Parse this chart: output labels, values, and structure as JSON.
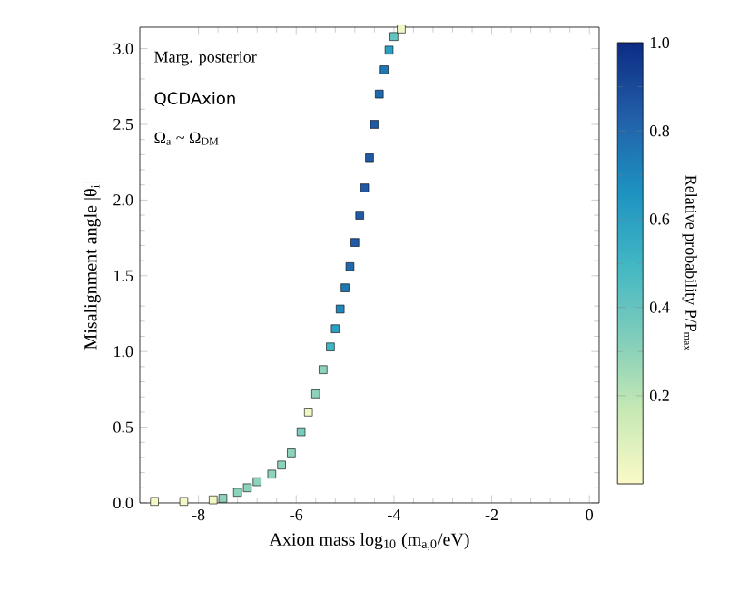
{
  "chart_data": {
    "type": "scatter",
    "xlabel": "Axion mass log$_{10}$ (m$_{a,0}$/eV)",
    "ylabel": "Misalignment angle |θ$_{i}$|",
    "clabel": "Relative probability P/P$_{max}$",
    "annotations": [
      "Marg. posterior",
      "QCDAxion",
      "Ω$_{a}$ ~ Ω$_{DM}$"
    ],
    "xlim": [
      -9.2,
      0.2
    ],
    "ylim": [
      0,
      3.1416
    ],
    "xticks": [
      -8,
      -6,
      -4,
      -2,
      0
    ],
    "yticks": [
      {
        "value": 0,
        "label": "0.0"
      },
      {
        "value": 0.5,
        "label": "0.5"
      },
      {
        "value": 1,
        "label": "1.0"
      },
      {
        "value": 1.5,
        "label": "1.5"
      },
      {
        "value": 2,
        "label": "2.0"
      },
      {
        "value": 2.5,
        "label": "2.5"
      },
      {
        "value": 3,
        "label": "3.0"
      }
    ],
    "clim": [
      0,
      1
    ],
    "cticks": [
      0.2,
      0.4,
      0.6,
      0.8,
      {
        "value": 1,
        "label": "1.0"
      }
    ],
    "marker": "square",
    "x": [
      -8.9,
      -8.3,
      -7.7,
      -7.5,
      -7.2,
      -7.0,
      -6.8,
      -6.5,
      -6.3,
      -6.1,
      -5.9,
      -5.75,
      -5.6,
      -5.45,
      -5.3,
      -5.2,
      -5.1,
      -5.0,
      -4.9,
      -4.8,
      -4.7,
      -4.6,
      -4.5,
      -4.4,
      -4.3,
      -4.2,
      -4.1,
      -4.0,
      -3.85
    ],
    "values": [
      0.01,
      0.01,
      0.02,
      0.03,
      0.07,
      0.1,
      0.14,
      0.19,
      0.25,
      0.33,
      0.47,
      0.6,
      0.72,
      0.88,
      1.03,
      1.15,
      1.28,
      1.42,
      1.56,
      1.72,
      1.9,
      2.08,
      2.28,
      2.5,
      2.7,
      2.86,
      2.99,
      3.08,
      3.13
    ],
    "cvalues": [
      0.02,
      0.02,
      0.03,
      0.3,
      0.3,
      0.3,
      0.3,
      0.3,
      0.3,
      0.3,
      0.35,
      0.03,
      0.3,
      0.3,
      0.5,
      0.6,
      0.7,
      0.75,
      0.8,
      0.85,
      0.85,
      0.85,
      0.85,
      0.85,
      0.8,
      0.75,
      0.6,
      0.4,
      0.03
    ]
  }
}
